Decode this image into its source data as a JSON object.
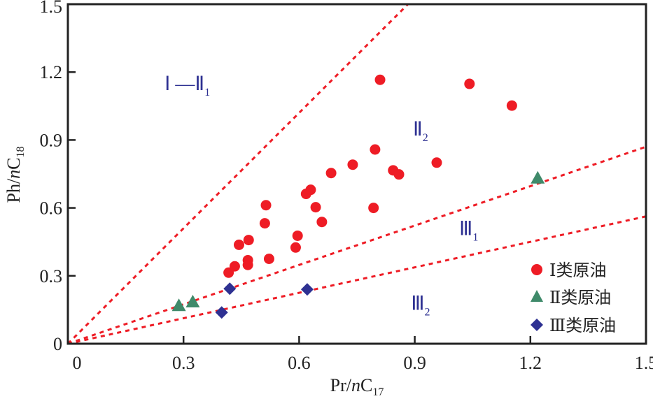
{
  "chart_data": {
    "type": "scatter",
    "title": "",
    "xlabel": {
      "main": "Pr/",
      "italic": "n",
      "tail": "C",
      "sub": "17"
    },
    "ylabel": {
      "main": "Ph/",
      "italic": "n",
      "tail": "C",
      "sub": "18"
    },
    "xlim": [
      0,
      1.5
    ],
    "ylim": [
      0,
      1.5
    ],
    "xticks": [
      0,
      0.3,
      0.6,
      0.9,
      1.2,
      1.5
    ],
    "xtick_labels": [
      "0",
      "0.3",
      "0.6",
      "0.9",
      "1.2",
      "1.5"
    ],
    "yticks": [
      0,
      0.3,
      0.6,
      0.9,
      1.2,
      1.5
    ],
    "ytick_labels": [
      "0",
      "0.3",
      "0.6",
      "0.9",
      "1.2",
      "1.5"
    ],
    "grid": false,
    "legend_position": "bottom-right",
    "series": [
      {
        "name": "Ⅰ类原油",
        "marker": "circle",
        "color": "#ee1c25",
        "points": [
          [
            0.417,
            0.314
          ],
          [
            0.433,
            0.342
          ],
          [
            0.444,
            0.437
          ],
          [
            0.469,
            0.458
          ],
          [
            0.467,
            0.369
          ],
          [
            0.467,
            0.348
          ],
          [
            0.511,
            0.532
          ],
          [
            0.514,
            0.612
          ],
          [
            0.522,
            0.375
          ],
          [
            0.591,
            0.425
          ],
          [
            0.596,
            0.477
          ],
          [
            0.618,
            0.662
          ],
          [
            0.63,
            0.68
          ],
          [
            0.643,
            0.603
          ],
          [
            0.659,
            0.538
          ],
          [
            0.683,
            0.754
          ],
          [
            0.739,
            0.791
          ],
          [
            0.793,
            0.6
          ],
          [
            0.797,
            0.858
          ],
          [
            0.81,
            1.166
          ],
          [
            0.844,
            0.766
          ],
          [
            0.859,
            0.748
          ],
          [
            0.957,
            0.8
          ],
          [
            1.042,
            1.148
          ],
          [
            1.152,
            1.052
          ]
        ]
      },
      {
        "name": "Ⅱ类原油",
        "marker": "triangle",
        "color": "#3f8a6a",
        "points": [
          [
            0.288,
            0.166
          ],
          [
            0.324,
            0.182
          ],
          [
            1.219,
            0.729
          ]
        ]
      },
      {
        "name": "Ⅲ类原油",
        "marker": "diamond",
        "color": "#2e3192",
        "points": [
          [
            0.399,
            0.138
          ],
          [
            0.42,
            0.243
          ],
          [
            0.621,
            0.24
          ]
        ]
      }
    ],
    "reference_lines": [
      {
        "name": "boundary-I-II1",
        "slope": 1.7,
        "color": "#ee1c25",
        "style": "dotted"
      },
      {
        "name": "boundary-II2-III1",
        "slope": 0.58,
        "color": "#ee1c25",
        "style": "dotted"
      },
      {
        "name": "boundary-III1-III2",
        "slope": 0.375,
        "color": "#ee1c25",
        "style": "dotted"
      }
    ],
    "annotations": [
      {
        "id": "region-I-II1",
        "main": "Ⅰ —Ⅱ",
        "sub": "1",
        "x": 0.31,
        "y": 1.12
      },
      {
        "id": "region-II2",
        "main": "Ⅱ",
        "sub": "2",
        "x": 0.915,
        "y": 0.92
      },
      {
        "id": "region-III1",
        "main": "Ⅲ",
        "sub": "1",
        "x": 1.04,
        "y": 0.48
      },
      {
        "id": "region-III2",
        "main": "Ⅲ",
        "sub": "2",
        "x": 0.915,
        "y": 0.15
      }
    ]
  }
}
